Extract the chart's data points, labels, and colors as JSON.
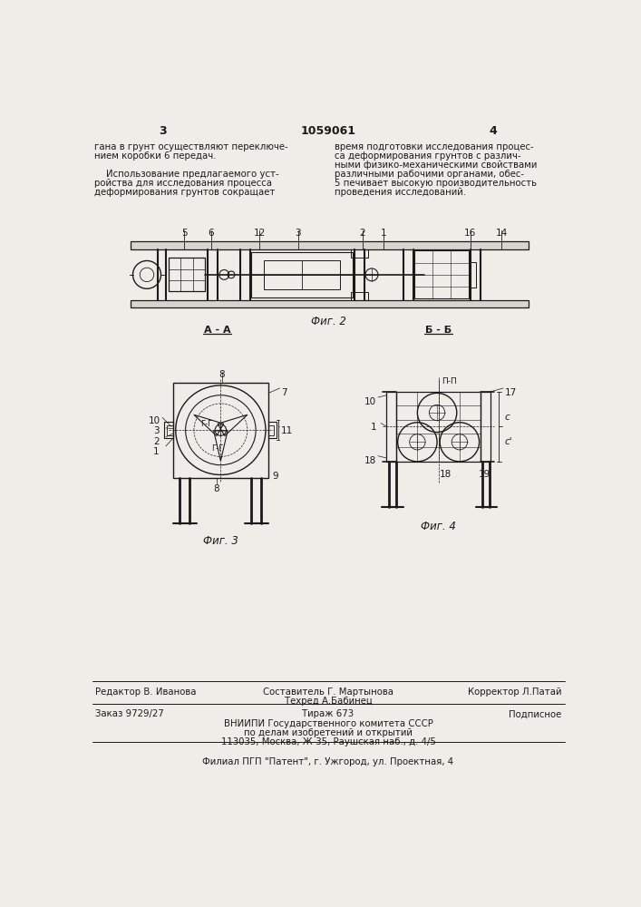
{
  "page_color": "#f0ede8",
  "text_color": "#1a1a1a",
  "patent_number": "1059061",
  "left_column_text": [
    "гана в грунт осуществляют переключе-",
    "нием коробки 6 передач.",
    "",
    "    Использование предлагаемого уст-",
    "ройства для исследования процесса",
    "деформирования грунтов сокращает"
  ],
  "right_column_text": [
    "время подготовки исследования процес-",
    "са деформирования грунтов с различ-",
    "ными физико-механическими свойствами",
    "различными рабочими органами, обес-",
    "5 печивает высокую производительность",
    "проведения исследований."
  ],
  "bottom_editor": "Редактор В. Иванова",
  "bottom_composer": "Составитель Г. Мартынова",
  "bottom_corrector": "Корректор Л.Патай",
  "bottom_techred": "Техред А.Бабинец",
  "bottom_order": "Заказ 9729/27",
  "bottom_tirazh": "Тираж 673",
  "bottom_podpisnoe": "Подписное",
  "bottom_vnipi1": "ВНИИПИ Государственного комитета СССР",
  "bottom_vnipi2": "по делам изобретений и открытий",
  "bottom_vnipi3": "113035, Москва, Ж-35, Раушская наб., д. 4/5",
  "bottom_filial": "Филиал ПГП \"Патент\", г. Ужгород, ул. Проектная, 4"
}
